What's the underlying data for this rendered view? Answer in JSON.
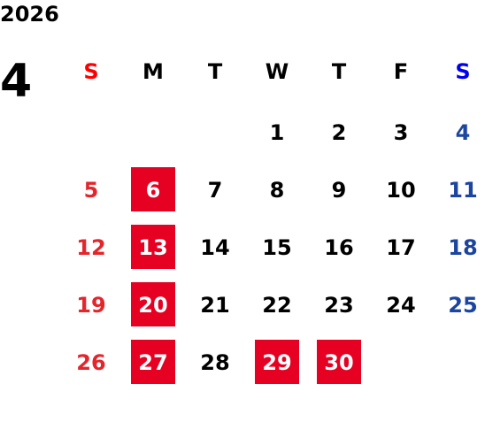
{
  "header": {
    "year": "2026",
    "month": "4"
  },
  "colors": {
    "sunday": "#e3262b",
    "saturday": "#1c45a0",
    "weekday": "#000000",
    "holiday_bg": "#e60022",
    "holiday_fg": "#ffffff",
    "weekday_header_sun": "#ff0000",
    "weekday_header_sat": "#0000ee"
  },
  "weekdays": [
    "S",
    "M",
    "T",
    "W",
    "T",
    "F",
    "S"
  ],
  "weeks": [
    [
      {
        "day": ""
      },
      {
        "day": ""
      },
      {
        "day": ""
      },
      {
        "day": "1"
      },
      {
        "day": "2"
      },
      {
        "day": "3"
      },
      {
        "day": "4"
      }
    ],
    [
      {
        "day": "5"
      },
      {
        "day": "6",
        "highlight": true
      },
      {
        "day": "7"
      },
      {
        "day": "8"
      },
      {
        "day": "9"
      },
      {
        "day": "10"
      },
      {
        "day": "11"
      }
    ],
    [
      {
        "day": "12"
      },
      {
        "day": "13",
        "highlight": true
      },
      {
        "day": "14"
      },
      {
        "day": "15"
      },
      {
        "day": "16"
      },
      {
        "day": "17"
      },
      {
        "day": "18"
      }
    ],
    [
      {
        "day": "19"
      },
      {
        "day": "20",
        "highlight": true
      },
      {
        "day": "21"
      },
      {
        "day": "22"
      },
      {
        "day": "23"
      },
      {
        "day": "24"
      },
      {
        "day": "25"
      }
    ],
    [
      {
        "day": "26"
      },
      {
        "day": "27",
        "highlight": true
      },
      {
        "day": "28"
      },
      {
        "day": "29",
        "highlight": true
      },
      {
        "day": "30",
        "highlight": true
      },
      {
        "day": ""
      },
      {
        "day": ""
      }
    ]
  ]
}
